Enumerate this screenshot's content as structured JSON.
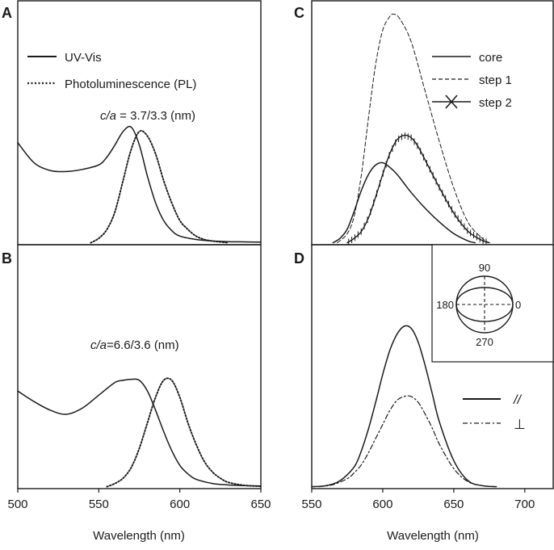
{
  "xlabel": "Wavelength (nm)",
  "chart_data": [
    {
      "type": "line",
      "panel": "A",
      "xlim": [
        500,
        650
      ],
      "ylim": [
        0,
        1
      ],
      "xticks": [],
      "annotation": "c/a = 3.7/3.3 (nm)",
      "legend": [
        "UV-Vis",
        "Photoluminescence (PL)"
      ],
      "series": [
        {
          "name": "UV-Vis",
          "style": "solid",
          "x": [
            500,
            510,
            520,
            530,
            540,
            550,
            555,
            560,
            565,
            570,
            575,
            580,
            585,
            590,
            595,
            600,
            610,
            620,
            630,
            640,
            650
          ],
          "y": [
            0.45,
            0.36,
            0.325,
            0.32,
            0.33,
            0.35,
            0.385,
            0.44,
            0.5,
            0.52,
            0.44,
            0.3,
            0.18,
            0.1,
            0.055,
            0.03,
            0.015,
            0.008,
            0.005,
            0.004,
            0.003
          ]
        },
        {
          "name": "Photoluminescence (PL)",
          "style": "dotted",
          "x": [
            545,
            550,
            555,
            560,
            565,
            570,
            575,
            580,
            585,
            590,
            595,
            600,
            605,
            610,
            615,
            620,
            630
          ],
          "y": [
            0.0,
            0.02,
            0.06,
            0.14,
            0.28,
            0.42,
            0.5,
            0.48,
            0.4,
            0.28,
            0.18,
            0.1,
            0.06,
            0.03,
            0.015,
            0.008,
            0.0
          ]
        }
      ]
    },
    {
      "type": "line",
      "panel": "B",
      "xlim": [
        500,
        650
      ],
      "ylim": [
        0,
        1
      ],
      "xticks": [
        500,
        550,
        600,
        650
      ],
      "annotation": "c/a=6.6/3.6 (nm)",
      "series": [
        {
          "name": "UV-Vis",
          "style": "solid",
          "x": [
            500,
            510,
            520,
            530,
            540,
            550,
            560,
            565,
            570,
            575,
            580,
            585,
            590,
            595,
            600,
            605,
            610,
            620,
            630,
            640,
            650
          ],
          "y": [
            0.45,
            0.4,
            0.36,
            0.34,
            0.37,
            0.43,
            0.49,
            0.5,
            0.505,
            0.5,
            0.45,
            0.36,
            0.26,
            0.17,
            0.1,
            0.06,
            0.035,
            0.015,
            0.008,
            0.005,
            0.003
          ]
        },
        {
          "name": "Photoluminescence (PL)",
          "style": "dotted",
          "x": [
            555,
            560,
            565,
            570,
            575,
            580,
            585,
            590,
            595,
            600,
            605,
            610,
            615,
            620,
            625,
            630,
            640,
            650
          ],
          "y": [
            0.0,
            0.015,
            0.04,
            0.09,
            0.18,
            0.3,
            0.42,
            0.5,
            0.5,
            0.42,
            0.3,
            0.2,
            0.12,
            0.07,
            0.04,
            0.02,
            0.006,
            0.002
          ]
        }
      ]
    },
    {
      "type": "line",
      "panel": "C",
      "xlim": [
        550,
        720
      ],
      "ylim": [
        0,
        1
      ],
      "xticks": [],
      "legend": [
        "core",
        "step 1",
        "step 2"
      ],
      "series": [
        {
          "name": "core",
          "style": "solid",
          "x": [
            565,
            570,
            575,
            580,
            585,
            590,
            595,
            600,
            605,
            610,
            615,
            620,
            630,
            640,
            650,
            660,
            665
          ],
          "y": [
            0.0,
            0.02,
            0.06,
            0.14,
            0.23,
            0.3,
            0.34,
            0.35,
            0.33,
            0.3,
            0.26,
            0.22,
            0.15,
            0.09,
            0.04,
            0.008,
            0.0
          ]
        },
        {
          "name": "step 1",
          "style": "dashed",
          "x": [
            568,
            575,
            580,
            585,
            590,
            595,
            600,
            605,
            608,
            612,
            620,
            630,
            640,
            650,
            660,
            670,
            675
          ],
          "y": [
            0.0,
            0.04,
            0.12,
            0.3,
            0.55,
            0.78,
            0.93,
            0.99,
            1.0,
            0.98,
            0.88,
            0.66,
            0.44,
            0.24,
            0.09,
            0.02,
            0.0
          ]
        },
        {
          "name": "step 2",
          "style": "cross",
          "x": [
            575,
            580,
            585,
            590,
            595,
            600,
            605,
            610,
            615,
            620,
            625,
            630,
            640,
            650,
            660,
            670,
            675
          ],
          "y": [
            0.0,
            0.02,
            0.05,
            0.11,
            0.2,
            0.3,
            0.39,
            0.45,
            0.47,
            0.46,
            0.42,
            0.36,
            0.24,
            0.13,
            0.05,
            0.01,
            0.0
          ]
        }
      ]
    },
    {
      "type": "line",
      "panel": "D",
      "xlim": [
        550,
        720
      ],
      "ylim": [
        0,
        1
      ],
      "xticks": [
        550,
        600,
        650,
        700
      ],
      "legend": [
        "//",
        "⊥"
      ],
      "inset": {
        "type": "polar",
        "angles": [
          "90",
          "180",
          "0",
          "270"
        ]
      },
      "series": [
        {
          "name": "//",
          "style": "solid",
          "x": [
            550,
            560,
            570,
            580,
            585,
            590,
            595,
            600,
            605,
            610,
            615,
            620,
            625,
            630,
            635,
            640,
            650,
            660,
            670,
            680
          ],
          "y": [
            0.0,
            0.005,
            0.03,
            0.1,
            0.18,
            0.29,
            0.42,
            0.56,
            0.68,
            0.76,
            0.8,
            0.79,
            0.72,
            0.6,
            0.46,
            0.32,
            0.13,
            0.03,
            0.005,
            0.0
          ]
        },
        {
          "name": "⊥",
          "style": "dashdot",
          "x": [
            555,
            565,
            575,
            580,
            585,
            590,
            595,
            600,
            605,
            610,
            615,
            620,
            625,
            630,
            635,
            640,
            650,
            660,
            670,
            680
          ],
          "y": [
            0.0,
            0.01,
            0.04,
            0.07,
            0.11,
            0.17,
            0.24,
            0.31,
            0.38,
            0.43,
            0.45,
            0.45,
            0.42,
            0.36,
            0.29,
            0.21,
            0.09,
            0.025,
            0.005,
            0.0
          ]
        }
      ]
    }
  ]
}
